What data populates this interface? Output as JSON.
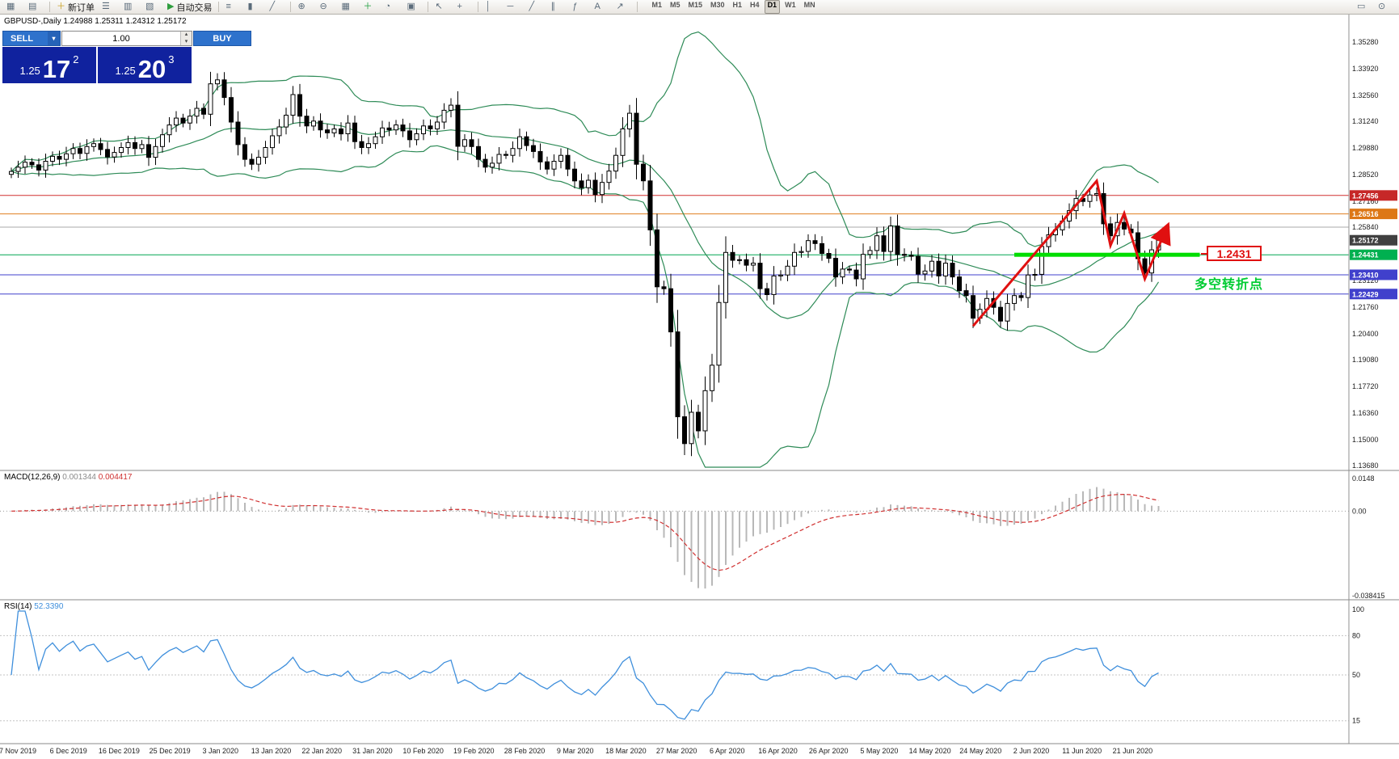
{
  "window": {
    "ohlc_info": "GBPUSD-,Daily  1.24988 1.25311 1.24312 1.25172"
  },
  "toolbar": {
    "items": [
      {
        "name": "new-chart-icon",
        "glyph": "▦"
      },
      {
        "name": "profiles-icon",
        "glyph": "▤"
      },
      {
        "type": "sep"
      },
      {
        "name": "new-order-button",
        "glyph": "＋",
        "glyph_color": "#c9a227",
        "label": "新订单"
      },
      {
        "name": "market-watch-icon",
        "glyph": "☰"
      },
      {
        "name": "data-window-icon",
        "glyph": "▥"
      },
      {
        "name": "navigator-icon",
        "glyph": "▧"
      },
      {
        "name": "autotrading-button",
        "glyph": "▶",
        "glyph_color": "#2e9e3e",
        "label": "自动交易"
      },
      {
        "type": "sep"
      },
      {
        "name": "bar-chart-icon",
        "glyph": "≡"
      },
      {
        "name": "candlestick-chart-icon",
        "glyph": "▮"
      },
      {
        "name": "line-chart-icon",
        "glyph": "╱"
      },
      {
        "type": "sep"
      },
      {
        "name": "zoom-in-icon",
        "glyph": "⊕"
      },
      {
        "name": "zoom-out-icon",
        "glyph": "⊖"
      },
      {
        "name": "tile-windows-icon",
        "glyph": "▦"
      },
      {
        "name": "indicators-icon",
        "glyph": "＋",
        "glyph_color": "#1d9e3c"
      },
      {
        "name": "periods-icon",
        "glyph": "◔"
      },
      {
        "name": "templates-icon",
        "glyph": "▣"
      },
      {
        "type": "sep"
      },
      {
        "name": "cursor-icon",
        "glyph": "↖"
      },
      {
        "name": "crosshair-icon",
        "glyph": "+"
      },
      {
        "type": "sep"
      },
      {
        "name": "vertical-line-icon",
        "glyph": "│"
      },
      {
        "name": "horizontal-line-icon",
        "glyph": "─"
      },
      {
        "name": "trendline-icon",
        "glyph": "╱"
      },
      {
        "name": "channel-icon",
        "glyph": "∥"
      },
      {
        "name": "fibonacci-icon",
        "glyph": "ƒ"
      },
      {
        "name": "text-icon",
        "glyph": "A"
      },
      {
        "name": "arrows-icon",
        "glyph": "↗"
      },
      {
        "type": "sep"
      }
    ],
    "timeframes": [
      "M1",
      "M5",
      "M15",
      "M30",
      "H1",
      "H4",
      "D1",
      "W1",
      "MN"
    ],
    "active_timeframe": "D1",
    "right_icons": [
      {
        "name": "chart-list-icon",
        "glyph": "▭"
      },
      {
        "name": "quick-search-icon",
        "glyph": "⊙"
      }
    ]
  },
  "trade_panel": {
    "sell_label": "SELL",
    "buy_label": "BUY",
    "volume": "1.00",
    "bid_small": "1.25",
    "bid_big": "17",
    "bid_sup": "2",
    "ask_small": "1.25",
    "ask_big": "20",
    "ask_sup": "3"
  },
  "annotations": {
    "level_label": "1.2431",
    "turning_point_text": "多空转折点",
    "trend_path": [
      [
        140,
        1.208
      ],
      [
        158,
        1.282
      ],
      [
        160,
        1.249
      ],
      [
        162,
        1.2655
      ],
      [
        165,
        1.232
      ],
      [
        168,
        1.2565
      ]
    ],
    "support_segment": {
      "price": 1.24431,
      "from_bar": 146,
      "to_bar": 173
    }
  },
  "colors": {
    "band": "#2e8b57",
    "bull": "#ffffff",
    "bear": "#000000",
    "wick": "#000000",
    "line_red": "#d03030",
    "line_orange": "#e07f20",
    "line_gray": "#a8a8a8",
    "line_green": "#00a651",
    "line_green_bright": "#00dd00",
    "line_blue": "#4040cc",
    "tag_red": "#c62828",
    "tag_orange": "#dd7716",
    "tag_green": "#00b050",
    "tag_blue": "#4040cc",
    "tag_current": "#404040",
    "macd_hist": "#b8b8b8",
    "macd_signal": "#d03030",
    "rsi": "#3f8fdc",
    "annotation_red": "#e01010",
    "annotation_green": "#00cc33"
  },
  "chart_data": {
    "type": "candlestick",
    "symbol": "GBPUSD-",
    "period": "Daily",
    "ohlc_display": {
      "open": "1.24988",
      "high": "1.25311",
      "low": "1.24312",
      "close": "1.25172"
    },
    "price_range": [
      1.1368,
      1.3528
    ],
    "price_axis_ticks": [
      1.3528,
      1.3392,
      1.3256,
      1.3124,
      1.2988,
      1.2852,
      1.2716,
      1.2584,
      1.2448,
      1.2312,
      1.2176,
      1.204,
      1.1908,
      1.1772,
      1.1636,
      1.15,
      1.1368
    ],
    "hlines": [
      {
        "price": 1.27456,
        "color_key": "line_red",
        "tag": "1.27456",
        "tag_key": "tag_red"
      },
      {
        "price": 1.26516,
        "color_key": "line_orange",
        "tag": "1.26516",
        "tag_key": "tag_orange"
      },
      {
        "price": 1.2584,
        "color_key": "line_gray"
      },
      {
        "price": 1.25172,
        "tag": "1.25172",
        "tag_key": "tag_current"
      },
      {
        "price": 1.24431,
        "color_key": "line_green",
        "tag": "1.24431",
        "tag_key": "tag_green"
      },
      {
        "price": 1.2341,
        "color_key": "line_blue",
        "tag": "1.23410",
        "tag_key": "tag_blue"
      },
      {
        "price": 1.22429,
        "color_key": "line_blue",
        "tag": "1.22429",
        "tag_key": "tag_blue"
      }
    ],
    "closes": [
      1.2868,
      1.289,
      1.2915,
      1.2902,
      1.2875,
      1.292,
      1.2945,
      1.293,
      1.2958,
      1.2985,
      1.296,
      1.2995,
      1.301,
      1.298,
      1.2942,
      1.2965,
      1.299,
      1.3015,
      1.2985,
      1.3005,
      1.294,
      1.2995,
      1.3055,
      1.3105,
      1.314,
      1.3115,
      1.315,
      1.319,
      1.316,
      1.3315,
      1.3335,
      1.3245,
      1.312,
      1.3005,
      1.293,
      1.2905,
      1.294,
      1.299,
      1.305,
      1.3095,
      1.3155,
      1.326,
      1.315,
      1.31,
      1.3125,
      1.308,
      1.3065,
      1.3085,
      1.306,
      1.3115,
      1.302,
      1.299,
      1.301,
      1.3045,
      1.309,
      1.308,
      1.3105,
      1.3075,
      1.303,
      1.306,
      1.31,
      1.3085,
      1.312,
      1.318,
      1.3206,
      1.2996,
      1.303,
      1.2995,
      1.293,
      1.289,
      1.291,
      1.2955,
      1.295,
      1.2985,
      1.3045,
      1.3,
      1.297,
      1.2917,
      1.288,
      1.292,
      1.295,
      1.288,
      1.282,
      1.2785,
      1.2823,
      1.275,
      1.2812,
      1.287,
      1.295,
      1.3085,
      1.3165,
      1.2905,
      1.282,
      1.257,
      1.228,
      1.227,
      1.205,
      1.1617,
      1.148,
      1.164,
      1.1545,
      1.175,
      1.188,
      1.22,
      1.2455,
      1.2415,
      1.2418,
      1.239,
      1.24,
      1.227,
      1.224,
      1.2335,
      1.234,
      1.2385,
      1.2455,
      1.246,
      1.2515,
      1.25,
      1.245,
      1.2425,
      1.233,
      1.237,
      1.2365,
      1.232,
      1.2445,
      1.2465,
      1.254,
      1.246,
      1.259,
      1.2445,
      1.244,
      1.2435,
      1.2345,
      1.236,
      1.241,
      1.2335,
      1.24,
      1.233,
      1.226,
      1.2235,
      1.212,
      1.2165,
      1.222,
      1.2175,
      1.2105,
      1.2195,
      1.2235,
      1.2225,
      1.234,
      1.2343,
      1.2485,
      1.2545,
      1.257,
      1.2615,
      1.2668,
      1.273,
      1.2715,
      1.2748,
      1.2755,
      1.2601,
      1.254,
      1.2608,
      1.2574,
      1.2555,
      1.2423,
      1.235,
      1.2468,
      1.2517
    ],
    "date_labels": [
      "7 Nov 2019",
      "6 Dec 2019",
      "16 Dec 2019",
      "25 Dec 2019",
      "3 Jan 2020",
      "13 Jan 2020",
      "22 Jan 2020",
      "31 Jan 2020",
      "10 Feb 2020",
      "19 Feb 2020",
      "28 Feb 2020",
      "9 Mar 2020",
      "18 Mar 2020",
      "27 Mar 2020",
      "6 Apr 2020",
      "16 Apr 2020",
      "26 Apr 2020",
      "5 May 2020",
      "14 May 2020",
      "24 May 2020",
      "2 Jun 2020",
      "11 Jun 2020",
      "21 Jun 2020"
    ],
    "indicators": {
      "bollinger": {
        "period": 20,
        "deviation": 2
      },
      "macd": {
        "label": "MACD(12,26,9)",
        "value_main": "0.001344",
        "value_signal": "0.004417",
        "axis_max": 0.0148,
        "axis_min": -0.038415,
        "axis_labels": [
          "0.0148",
          "0.00",
          "-0.038415"
        ]
      },
      "rsi": {
        "label": "RSI(14)",
        "value": "52.3390",
        "levels": [
          80,
          50,
          15
        ],
        "axis_labels": [
          {
            "v": 100,
            "t": "100"
          },
          {
            "v": 80,
            "t": "80"
          },
          {
            "v": 50,
            "t": "50"
          },
          {
            "v": 15,
            "t": "15"
          }
        ]
      }
    }
  }
}
